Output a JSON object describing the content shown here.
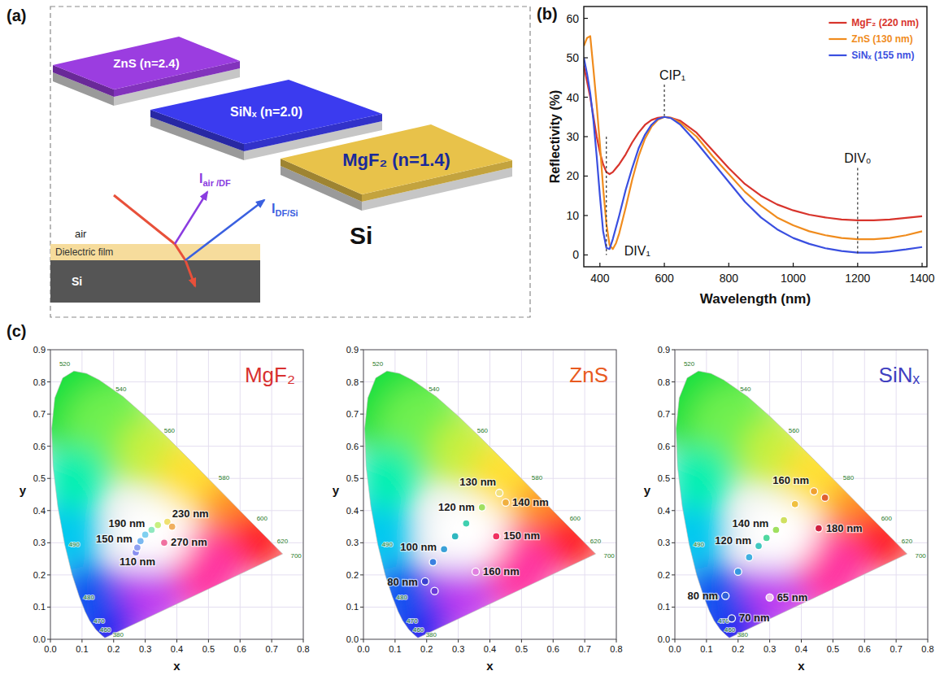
{
  "diagram": {
    "panel_label": "(a)",
    "films": [
      {
        "label": "ZnS (n=2.4)",
        "color": "#9b3de0"
      },
      {
        "label": "SiNₓ (n=2.0)",
        "color": "#3b3bef"
      },
      {
        "label": "MgF₂ (n=1.4)",
        "color": "#e8c24a"
      }
    ],
    "substrate": "Si",
    "cross_section": {
      "layers": [
        "air",
        "Dielectric film",
        "Si"
      ],
      "rays": [
        {
          "symbol": "I",
          "subscript": "air /DF",
          "color": "#8a3ce0"
        },
        {
          "symbol": "I",
          "subscript": "DF/Si",
          "color": "#3a60e0"
        }
      ]
    }
  },
  "cie_locus": {
    "x": [
      0.1741,
      0.1714,
      0.1644,
      0.1566,
      0.144,
      0.1241,
      0.1096,
      0.0913,
      0.0687,
      0.0454,
      0.0235,
      0.0082,
      0.0039,
      0.0139,
      0.0389,
      0.0743,
      0.1142,
      0.1547,
      0.2296,
      0.3016,
      0.3731,
      0.4441,
      0.5125,
      0.5752,
      0.627,
      0.6658,
      0.6915,
      0.719,
      0.7347
    ],
    "y": [
      0.005,
      0.0051,
      0.0109,
      0.0177,
      0.0297,
      0.0578,
      0.0868,
      0.1327,
      0.2007,
      0.295,
      0.4127,
      0.5384,
      0.6548,
      0.7502,
      0.812,
      0.8338,
      0.8262,
      0.8059,
      0.7543,
      0.6923,
      0.6245,
      0.5547,
      0.4866,
      0.4242,
      0.3725,
      0.334,
      0.3083,
      0.2809,
      0.2653
    ],
    "labels": [
      {
        "label": "520",
        "x": 0.0743,
        "y": 0.8338
      },
      {
        "label": "540",
        "x": 0.2296,
        "y": 0.7543
      },
      {
        "label": "560",
        "x": 0.3731,
        "y": 0.6245
      },
      {
        "label": "580",
        "x": 0.5125,
        "y": 0.4866
      },
      {
        "label": "600",
        "x": 0.627,
        "y": 0.3725
      },
      {
        "label": "620",
        "x": 0.6915,
        "y": 0.3083
      },
      {
        "label": "700",
        "x": 0.7347,
        "y": 0.2653
      },
      {
        "label": "490",
        "x": 0.0454,
        "y": 0.295
      },
      {
        "label": "480",
        "x": 0.0913,
        "y": 0.1327
      },
      {
        "label": "470",
        "x": 0.1241,
        "y": 0.0578
      },
      {
        "label": "460",
        "x": 0.144,
        "y": 0.0297
      },
      {
        "label": "380",
        "x": 0.1741,
        "y": 0.005
      }
    ]
  },
  "chart_data": [
    {
      "type": "line",
      "panel": "(b)",
      "x_label": "Wavelength (nm)",
      "y_label": "Reflectivity (%)",
      "xlim": [
        350,
        1415
      ],
      "ylim": [
        -3,
        63
      ],
      "xticks": [
        400,
        600,
        800,
        1000,
        1200,
        1400
      ],
      "yticks": [
        0,
        10,
        20,
        30,
        40,
        50,
        60
      ],
      "grid": false,
      "legend": "upper right",
      "x": [
        350,
        360,
        370,
        380,
        390,
        400,
        410,
        420,
        430,
        440,
        450,
        460,
        480,
        500,
        520,
        540,
        560,
        580,
        600,
        620,
        650,
        700,
        750,
        800,
        850,
        900,
        950,
        1000,
        1050,
        1100,
        1150,
        1200,
        1250,
        1300,
        1350,
        1400
      ],
      "series": [
        {
          "name": "MgF₂ (220 nm)",
          "color": "#d8342c",
          "line_style": "solid",
          "values": [
            48,
            44,
            40,
            35,
            30,
            26,
            23,
            21,
            20.5,
            21,
            22,
            23,
            25.5,
            28.5,
            31,
            33,
            34.2,
            34.8,
            35,
            34.8,
            34,
            31,
            26.5,
            22,
            18,
            15,
            12.8,
            11.3,
            10.2,
            9.5,
            9,
            8.8,
            8.8,
            9,
            9.4,
            9.8
          ]
        },
        {
          "name": "ZnS (130 nm)",
          "color": "#f08c1e",
          "line_style": "solid",
          "values": [
            53,
            55,
            55.5,
            47,
            38,
            28,
            17,
            8,
            2.5,
            1.5,
            3,
            5.5,
            12,
            19,
            25,
            29.5,
            32.5,
            34.3,
            35,
            34.8,
            33.5,
            30,
            25,
            20.5,
            16,
            12.5,
            9.5,
            7.5,
            6,
            5,
            4.3,
            4,
            4,
            4.3,
            5,
            6
          ]
        },
        {
          "name": "SiNₓ (155 nm)",
          "color": "#3a4fe0",
          "line_style": "solid",
          "values": [
            50,
            46,
            41,
            34,
            25,
            15,
            6,
            1.8,
            1.5,
            4,
            7,
            10,
            16.5,
            22,
            27,
            30.5,
            33,
            34.5,
            35,
            34.7,
            33,
            28.5,
            23.5,
            18.5,
            13.5,
            9.5,
            6.5,
            4.3,
            2.8,
            1.7,
            1,
            0.6,
            0.6,
            0.9,
            1.4,
            2
          ]
        }
      ],
      "annotations": [
        {
          "text": "CIP₁",
          "x": 600
        },
        {
          "text": "DIV₁",
          "x": 420
        },
        {
          "text": "DIV₀",
          "x": 1200
        }
      ]
    },
    {
      "type": "scatter",
      "panel": "(c)",
      "title": "MgF₂",
      "color": "#d83030",
      "x_label": "x",
      "y_label": "y",
      "xlim": [
        0,
        0.8
      ],
      "ylim": [
        0,
        0.9
      ],
      "xticks": [
        {
          "value": 0,
          "label": "0.0"
        },
        0.1,
        0.2,
        0.3,
        0.4,
        0.5,
        0.6,
        0.7,
        0.8
      ],
      "yticks": [
        {
          "value": 0,
          "label": "0.0"
        },
        0.1,
        0.2,
        0.3,
        0.4,
        0.5,
        0.6,
        0.7,
        0.8,
        0.9
      ],
      "grid": true,
      "series": [
        {
          "marker": "circle",
          "x": [
            0.27,
            0.275,
            0.285,
            0.3,
            0.32,
            0.34,
            0.37,
            0.385,
            0.36
          ],
          "values": [
            0.27,
            0.285,
            0.305,
            0.325,
            0.34,
            0.355,
            0.365,
            0.35,
            0.3
          ],
          "colors": [
            "#8a8ff0",
            "#8fa0f0",
            "#7ab8f0",
            "#80d0f0",
            "#90e8c0",
            "#c8f080",
            "#f0e070",
            "#f0b060",
            "#f070a0"
          ],
          "labels": [
            "110 nm",
            null,
            "150 nm",
            null,
            "190 nm",
            null,
            "230 nm",
            null,
            "270 nm"
          ]
        }
      ]
    },
    {
      "type": "scatter",
      "title": "ZnS",
      "color": "#e85a20",
      "x_label": "x",
      "y_label": "y",
      "xlim": [
        0,
        0.8
      ],
      "ylim": [
        0,
        0.9
      ],
      "xticks": [
        {
          "value": 0,
          "label": "0.0"
        },
        0.1,
        0.2,
        0.3,
        0.4,
        0.5,
        0.6,
        0.7,
        0.8
      ],
      "yticks": [
        {
          "value": 0,
          "label": "0.0"
        },
        0.1,
        0.2,
        0.3,
        0.4,
        0.5,
        0.6,
        0.7,
        0.8,
        0.9
      ],
      "grid": true,
      "series": [
        {
          "marker": "circle",
          "x": [
            0.225,
            0.195,
            0.22,
            0.255,
            0.29,
            0.325,
            0.375,
            0.43,
            0.45,
            0.42,
            0.355
          ],
          "values": [
            0.15,
            0.18,
            0.24,
            0.28,
            0.32,
            0.36,
            0.41,
            0.455,
            0.425,
            0.32,
            0.21
          ],
          "colors": [
            "#6a3ad8",
            "#3a40d0",
            "#3a80e0",
            "#3aa0d8",
            "#30b8c0",
            "#40d0b0",
            "#a0e060",
            "#f0e080",
            "#f0b040",
            "#f03060",
            "#e080e0"
          ],
          "labels": [
            null,
            "80 nm",
            null,
            "100 nm",
            null,
            null,
            "120 nm",
            "130 nm",
            "140 nm",
            "150 nm",
            "160 nm"
          ]
        }
      ]
    },
    {
      "type": "scatter",
      "title": "SiNₓ",
      "color": "#4040c0",
      "x_label": "x",
      "y_label": "y",
      "xlim": [
        0,
        0.8
      ],
      "ylim": [
        0,
        0.9
      ],
      "xticks": [
        {
          "value": 0,
          "label": "0.0"
        },
        0.1,
        0.2,
        0.3,
        0.4,
        0.5,
        0.6,
        0.7,
        0.8
      ],
      "yticks": [
        {
          "value": 0,
          "label": "0.0"
        },
        0.1,
        0.2,
        0.3,
        0.4,
        0.5,
        0.6,
        0.7,
        0.8,
        0.9
      ],
      "grid": true,
      "series": [
        {
          "marker": "circle",
          "x": [
            0.3,
            0.18,
            0.16,
            0.2,
            0.235,
            0.265,
            0.29,
            0.32,
            0.345,
            0.38,
            0.44,
            0.475,
            0.455
          ],
          "values": [
            0.13,
            0.065,
            0.135,
            0.21,
            0.255,
            0.29,
            0.315,
            0.34,
            0.37,
            0.42,
            0.46,
            0.44,
            0.345
          ],
          "colors": [
            "#f0c0f0",
            "#3040c8",
            "#3060d8",
            "#3898e0",
            "#40b0e0",
            "#40c8c0",
            "#50d8a0",
            "#a0e060",
            "#d0e060",
            "#f0c040",
            "#f0a030",
            "#e06030",
            "#d02040"
          ],
          "labels": [
            "65 nm",
            "70 nm",
            "80 nm",
            null,
            null,
            "120 nm",
            null,
            "140 nm",
            null,
            null,
            "160 nm",
            null,
            "180 nm"
          ]
        }
      ]
    }
  ]
}
